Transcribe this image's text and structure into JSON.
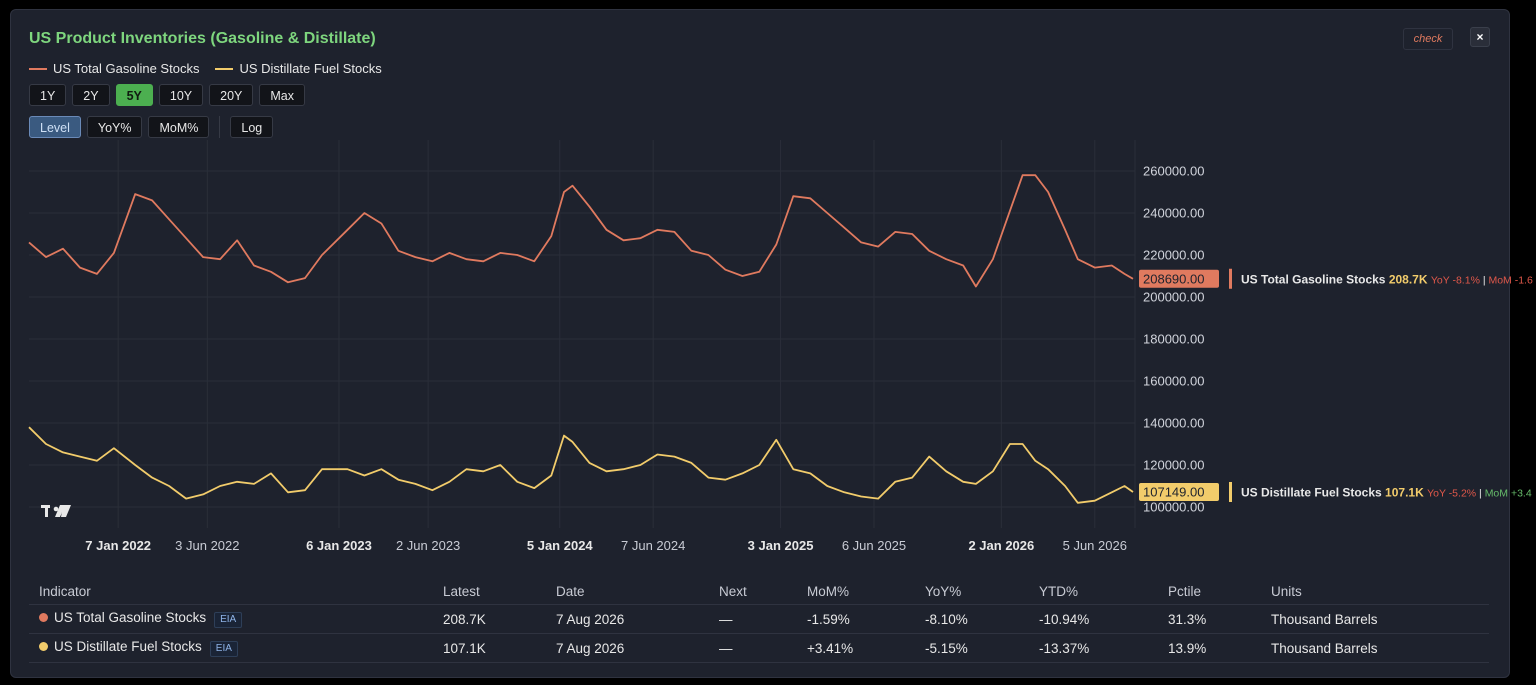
{
  "header": {
    "title": "US Product Inventories (Gasoline & Distillate)",
    "check_label": "check",
    "close_label": "×"
  },
  "legend": [
    {
      "name": "US Total Gasoline Stocks",
      "color": "#e07a5f"
    },
    {
      "name": "US Distillate Fuel Stocks",
      "color": "#f2cc6b"
    }
  ],
  "range_buttons": [
    {
      "label": "1Y",
      "active": false
    },
    {
      "label": "2Y",
      "active": false
    },
    {
      "label": "5Y",
      "active": true
    },
    {
      "label": "10Y",
      "active": false
    },
    {
      "label": "20Y",
      "active": false
    },
    {
      "label": "Max",
      "active": false
    }
  ],
  "mode_buttons": [
    {
      "label": "Level",
      "active": true
    },
    {
      "label": "YoY%",
      "active": false
    },
    {
      "label": "MoM%",
      "active": false
    }
  ],
  "log_button": {
    "label": "Log"
  },
  "chart_data": {
    "type": "line",
    "x_start": "2021-08-13",
    "x_end": "2026-08-07",
    "ylim": [
      90000,
      270000
    ],
    "y_ticks": [
      "260000.00",
      "240000.00",
      "220000.00",
      "200000.00",
      "180000.00",
      "160000.00",
      "140000.00",
      "120000.00",
      "100000.00"
    ],
    "x_ticks": [
      {
        "label": "7 Jan 2022",
        "date": "2022-01-07",
        "bold": true
      },
      {
        "label": "3 Jun 2022",
        "date": "2022-06-03",
        "bold": false
      },
      {
        "label": "6 Jan 2023",
        "date": "2023-01-06",
        "bold": true
      },
      {
        "label": "2 Jun 2023",
        "date": "2023-06-02",
        "bold": false
      },
      {
        "label": "5 Jan 2024",
        "date": "2024-01-05",
        "bold": true
      },
      {
        "label": "7 Jun 2024",
        "date": "2024-06-07",
        "bold": false
      },
      {
        "label": "3 Jan 2025",
        "date": "2025-01-03",
        "bold": true
      },
      {
        "label": "6 Jun 2025",
        "date": "2025-06-06",
        "bold": false
      },
      {
        "label": "2 Jan 2026",
        "date": "2026-01-02",
        "bold": true
      },
      {
        "label": "5 Jun 2026",
        "date": "2026-06-05",
        "bold": false
      }
    ],
    "series": [
      {
        "name": "US Total Gasoline Stocks",
        "color": "#e07a5f",
        "last_value_label": "208690.00",
        "pane_label": "US Total Gasoline Stocks",
        "pane_value": "208.7K",
        "pane_yoy": "YoY -8.1%",
        "pane_mom": "MoM -1.6",
        "points": [
          [
            "2021-08-13",
            226000
          ],
          [
            "2021-09-10",
            219000
          ],
          [
            "2021-10-08",
            223000
          ],
          [
            "2021-11-05",
            214000
          ],
          [
            "2021-12-03",
            211000
          ],
          [
            "2021-12-31",
            221000
          ],
          [
            "2022-02-04",
            249000
          ],
          [
            "2022-03-04",
            246000
          ],
          [
            "2022-04-01",
            237000
          ],
          [
            "2022-04-29",
            228000
          ],
          [
            "2022-05-27",
            219000
          ],
          [
            "2022-06-24",
            218000
          ],
          [
            "2022-07-22",
            227000
          ],
          [
            "2022-08-19",
            215000
          ],
          [
            "2022-09-16",
            212000
          ],
          [
            "2022-10-14",
            207000
          ],
          [
            "2022-11-11",
            209000
          ],
          [
            "2022-12-09",
            220000
          ],
          [
            "2023-01-20",
            232000
          ],
          [
            "2023-02-17",
            240000
          ],
          [
            "2023-03-17",
            235000
          ],
          [
            "2023-04-14",
            222000
          ],
          [
            "2023-05-12",
            219000
          ],
          [
            "2023-06-09",
            217000
          ],
          [
            "2023-07-07",
            221000
          ],
          [
            "2023-08-04",
            218000
          ],
          [
            "2023-09-01",
            217000
          ],
          [
            "2023-09-29",
            221000
          ],
          [
            "2023-10-27",
            220000
          ],
          [
            "2023-11-24",
            217000
          ],
          [
            "2023-12-22",
            229000
          ],
          [
            "2024-01-12",
            250000
          ],
          [
            "2024-01-26",
            253000
          ],
          [
            "2024-02-23",
            243000
          ],
          [
            "2024-03-22",
            232000
          ],
          [
            "2024-04-19",
            227000
          ],
          [
            "2024-05-17",
            228000
          ],
          [
            "2024-06-14",
            232000
          ],
          [
            "2024-07-12",
            231000
          ],
          [
            "2024-08-09",
            222000
          ],
          [
            "2024-09-06",
            220000
          ],
          [
            "2024-10-04",
            213000
          ],
          [
            "2024-11-01",
            210000
          ],
          [
            "2024-11-29",
            212000
          ],
          [
            "2024-12-27",
            225000
          ],
          [
            "2025-01-24",
            248000
          ],
          [
            "2025-02-21",
            247000
          ],
          [
            "2025-03-21",
            240000
          ],
          [
            "2025-04-18",
            233000
          ],
          [
            "2025-05-16",
            226000
          ],
          [
            "2025-06-13",
            224000
          ],
          [
            "2025-07-11",
            231000
          ],
          [
            "2025-08-08",
            230000
          ],
          [
            "2025-09-05",
            222000
          ],
          [
            "2025-10-03",
            218000
          ],
          [
            "2025-10-31",
            215000
          ],
          [
            "2025-11-21",
            205000
          ],
          [
            "2025-12-19",
            218000
          ],
          [
            "2026-01-16",
            241000
          ],
          [
            "2026-02-06",
            258000
          ],
          [
            "2026-02-27",
            258000
          ],
          [
            "2026-03-20",
            250000
          ],
          [
            "2026-04-17",
            232000
          ],
          [
            "2026-05-08",
            218000
          ],
          [
            "2026-06-05",
            214000
          ],
          [
            "2026-07-03",
            215000
          ],
          [
            "2026-07-24",
            211000
          ],
          [
            "2026-08-07",
            208690
          ]
        ]
      },
      {
        "name": "US Distillate Fuel Stocks",
        "color": "#f2cc6b",
        "last_value_label": "107149.00",
        "pane_label": "US Distillate Fuel Stocks",
        "pane_value": "107.1K",
        "pane_yoy": "YoY -5.2%",
        "pane_mom": "MoM +3.4",
        "points": [
          [
            "2021-08-13",
            138000
          ],
          [
            "2021-09-10",
            130000
          ],
          [
            "2021-10-08",
            126000
          ],
          [
            "2021-11-05",
            124000
          ],
          [
            "2021-12-03",
            122000
          ],
          [
            "2021-12-31",
            128000
          ],
          [
            "2022-02-04",
            120000
          ],
          [
            "2022-03-04",
            114000
          ],
          [
            "2022-04-01",
            110000
          ],
          [
            "2022-04-29",
            104000
          ],
          [
            "2022-05-27",
            106000
          ],
          [
            "2022-06-24",
            110000
          ],
          [
            "2022-07-22",
            112000
          ],
          [
            "2022-08-19",
            111000
          ],
          [
            "2022-09-16",
            116000
          ],
          [
            "2022-10-14",
            107000
          ],
          [
            "2022-11-11",
            108000
          ],
          [
            "2022-12-09",
            118000
          ],
          [
            "2023-01-20",
            118000
          ],
          [
            "2023-02-17",
            115000
          ],
          [
            "2023-03-17",
            118000
          ],
          [
            "2023-04-14",
            113000
          ],
          [
            "2023-05-12",
            111000
          ],
          [
            "2023-06-09",
            108000
          ],
          [
            "2023-07-07",
            112000
          ],
          [
            "2023-08-04",
            118000
          ],
          [
            "2023-09-01",
            117000
          ],
          [
            "2023-09-29",
            120000
          ],
          [
            "2023-10-27",
            112000
          ],
          [
            "2023-11-24",
            109000
          ],
          [
            "2023-12-22",
            115000
          ],
          [
            "2024-01-12",
            134000
          ],
          [
            "2024-01-26",
            131000
          ],
          [
            "2024-02-23",
            121000
          ],
          [
            "2024-03-22",
            117000
          ],
          [
            "2024-04-19",
            118000
          ],
          [
            "2024-05-17",
            120000
          ],
          [
            "2024-06-14",
            125000
          ],
          [
            "2024-07-12",
            124000
          ],
          [
            "2024-08-09",
            121000
          ],
          [
            "2024-09-06",
            114000
          ],
          [
            "2024-10-04",
            113000
          ],
          [
            "2024-11-01",
            116000
          ],
          [
            "2024-11-29",
            120000
          ],
          [
            "2024-12-27",
            132000
          ],
          [
            "2025-01-24",
            118000
          ],
          [
            "2025-02-21",
            116000
          ],
          [
            "2025-03-21",
            110000
          ],
          [
            "2025-04-18",
            107000
          ],
          [
            "2025-05-16",
            105000
          ],
          [
            "2025-06-13",
            104000
          ],
          [
            "2025-07-11",
            112000
          ],
          [
            "2025-08-08",
            114000
          ],
          [
            "2025-09-05",
            124000
          ],
          [
            "2025-10-03",
            117000
          ],
          [
            "2025-10-31",
            112000
          ],
          [
            "2025-11-21",
            111000
          ],
          [
            "2025-12-19",
            117000
          ],
          [
            "2026-01-16",
            130000
          ],
          [
            "2026-02-06",
            130000
          ],
          [
            "2026-02-27",
            122000
          ],
          [
            "2026-03-20",
            118000
          ],
          [
            "2026-04-17",
            110000
          ],
          [
            "2026-05-08",
            102000
          ],
          [
            "2026-06-05",
            103000
          ],
          [
            "2026-07-03",
            107000
          ],
          [
            "2026-07-24",
            110000
          ],
          [
            "2026-08-07",
            107149
          ]
        ]
      }
    ]
  },
  "table": {
    "headers": [
      "Indicator",
      "Latest",
      "Date",
      "Next",
      "MoM%",
      "YoY%",
      "YTD%",
      "Pctile",
      "Units"
    ],
    "rows": [
      {
        "color": "#e07a5f",
        "indicator": "US Total Gasoline Stocks",
        "source": "EIA",
        "latest": "208.7K",
        "date": "7 Aug 2026",
        "next": "—",
        "mom": "-1.59%",
        "yoy": "-8.10%",
        "ytd": "-10.94%",
        "pctile": "31.3%",
        "units": "Thousand Barrels"
      },
      {
        "color": "#f2cc6b",
        "indicator": "US Distillate Fuel Stocks",
        "source": "EIA",
        "latest": "107.1K",
        "date": "7 Aug 2026",
        "next": "—",
        "mom": "+3.41%",
        "yoy": "-5.15%",
        "ytd": "-13.37%",
        "pctile": "13.9%",
        "units": "Thousand Barrels"
      }
    ]
  },
  "watermark": "17"
}
